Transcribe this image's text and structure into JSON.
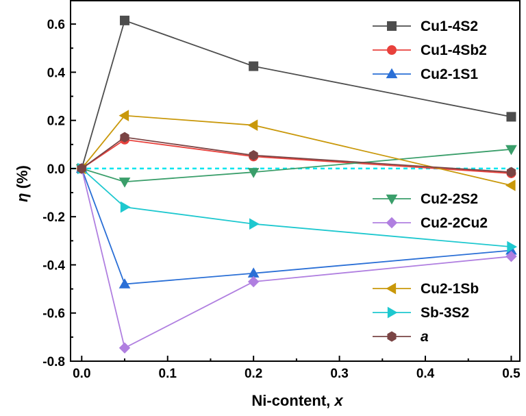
{
  "chart_data": {
    "type": "line",
    "xlabel_main": "Ni-content, ",
    "xlabel_var": "x",
    "ylabel_var": "η",
    "ylabel_unit": " (%)",
    "xlim": [
      -0.013,
      0.51
    ],
    "ylim": [
      -0.8,
      0.7
    ],
    "x_ticks": [
      0.0,
      0.1,
      0.2,
      0.3,
      0.4,
      0.5
    ],
    "x_tick_labels": [
      "0.0",
      "0.1",
      "0.2",
      "0.3",
      "0.4",
      "0.5"
    ],
    "y_ticks": [
      -0.8,
      -0.6,
      -0.4,
      -0.2,
      0.0,
      0.2,
      0.4,
      0.6
    ],
    "y_tick_labels": [
      "-0.8",
      "-0.6",
      "-0.4",
      "-0.2",
      "0.0",
      "0.2",
      "0.4",
      "0.6"
    ],
    "x": [
      0.0,
      0.05,
      0.2,
      0.5
    ],
    "reference_line": {
      "y": 0.0,
      "color": "#00e5ee",
      "style": "dashed"
    },
    "series": [
      {
        "name": "Cu1-4S2",
        "color": "#4d4d4d",
        "marker": "square",
        "values": [
          0.0,
          0.615,
          0.425,
          0.215
        ]
      },
      {
        "name": "Cu1-4Sb2",
        "color": "#e8413c",
        "marker": "circle",
        "values": [
          0.0,
          0.12,
          0.05,
          -0.02
        ]
      },
      {
        "name": "Cu2-1S1",
        "color": "#2a6fd6",
        "marker": "triangle-up",
        "values": [
          0.0,
          -0.48,
          -0.435,
          -0.34
        ]
      },
      {
        "name": "Cu2-2S2",
        "color": "#3a9e6a",
        "marker": "triangle-down",
        "values": [
          0.0,
          -0.055,
          -0.015,
          0.08
        ]
      },
      {
        "name": "Cu2-2Cu2",
        "color": "#b07fe0",
        "marker": "diamond",
        "values": [
          0.0,
          -0.745,
          -0.47,
          -0.365
        ]
      },
      {
        "name": "Cu2-1Sb",
        "color": "#c9980a",
        "marker": "triangle-left",
        "values": [
          0.0,
          0.22,
          0.18,
          -0.07
        ]
      },
      {
        "name": "Sb-3S2",
        "color": "#1ec8cf",
        "marker": "triangle-right",
        "values": [
          0.0,
          -0.16,
          -0.23,
          -0.325
        ]
      },
      {
        "name": "a",
        "color": "#7a4444",
        "marker": "hexagon",
        "italic": true,
        "values": [
          0.0,
          0.13,
          0.055,
          -0.015
        ]
      }
    ],
    "legend_groups": [
      {
        "placement": "top-right",
        "series_indices": [
          0,
          1,
          2
        ]
      },
      {
        "placement": "middle-right",
        "series_indices": [
          3,
          4
        ]
      },
      {
        "placement": "bottom-right",
        "series_indices": [
          5,
          6,
          7
        ]
      }
    ]
  }
}
